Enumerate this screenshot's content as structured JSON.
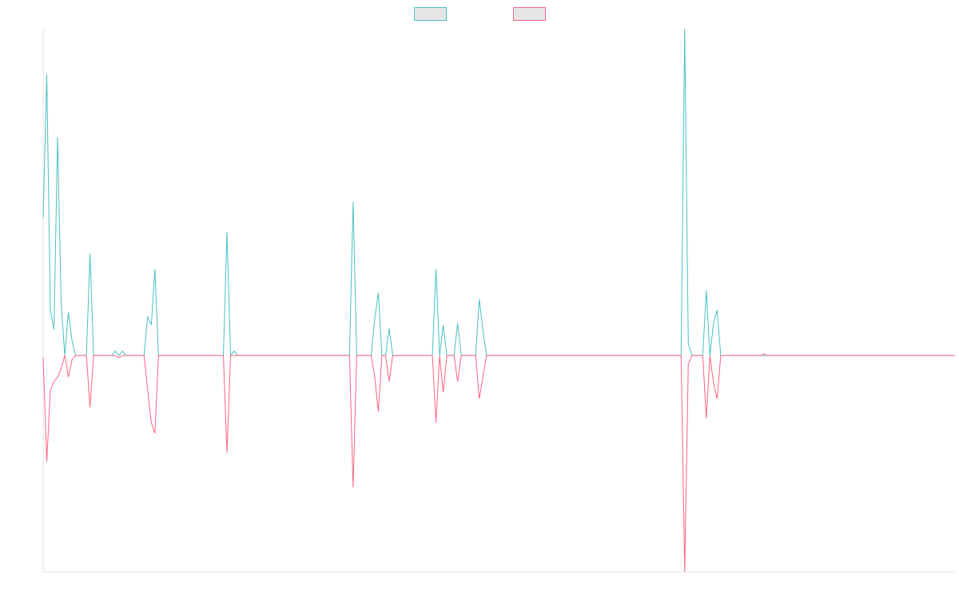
{
  "chart_data": {
    "type": "line",
    "categories": [
      null,
      null,
      null,
      null,
      null,
      null,
      null,
      null,
      null,
      null,
      null,
      null,
      null,
      null,
      null,
      null,
      null,
      null,
      null,
      null,
      null,
      null,
      null,
      null,
      null,
      null,
      null,
      null,
      null,
      null,
      null,
      null,
      null,
      null,
      null,
      null,
      null,
      null,
      null,
      null,
      null,
      null,
      null,
      null,
      null,
      null,
      null,
      null,
      null,
      null,
      null,
      null,
      null,
      null,
      null,
      null,
      null,
      null,
      null,
      null,
      null,
      null,
      null,
      null,
      null,
      null,
      null,
      null,
      null,
      null,
      null,
      null,
      null,
      null,
      null,
      null,
      null,
      null,
      null,
      null,
      null,
      null,
      null,
      null,
      null,
      null,
      null,
      null,
      null,
      null,
      null,
      null,
      null,
      null,
      null,
      null,
      null,
      null,
      null,
      null,
      null,
      null,
      null,
      null,
      null,
      null,
      null,
      null,
      null,
      null,
      null,
      null,
      null,
      null,
      null,
      null,
      null,
      null,
      null,
      null,
      null,
      null,
      null,
      null,
      null,
      null,
      null,
      null,
      null,
      null,
      null,
      null,
      null,
      null,
      null,
      null,
      null,
      null,
      null,
      null,
      null,
      null,
      null,
      null,
      null,
      null,
      null,
      null,
      null,
      null,
      null,
      null,
      null,
      null,
      null,
      null,
      null,
      null,
      null,
      null,
      null,
      null,
      null,
      null,
      null,
      null,
      null,
      null,
      null,
      null,
      null,
      null,
      null,
      null,
      null,
      null,
      null,
      null,
      null,
      null,
      null,
      null,
      null,
      null,
      null,
      null,
      null,
      null,
      null,
      null,
      null,
      null,
      null,
      null,
      null,
      null,
      null,
      null,
      null,
      null,
      null,
      null,
      null,
      null,
      null,
      null,
      null,
      null,
      null,
      null,
      null,
      null,
      null,
      null,
      null,
      null,
      null,
      null,
      null,
      null,
      null,
      null,
      null,
      null,
      null,
      null,
      null,
      null,
      null,
      null,
      null,
      null,
      null,
      null,
      null,
      null,
      null,
      null,
      null,
      null,
      null,
      null,
      null,
      null,
      null,
      null,
      null,
      null,
      null,
      null,
      null,
      null,
      null,
      null
    ],
    "series": [
      {
        "color": "#4bc0c0",
        "values": [
          63.5,
          130,
          21,
          12,
          101,
          24,
          0,
          20,
          7,
          0,
          0,
          0,
          0,
          47,
          0,
          0,
          0,
          0,
          0,
          0,
          2,
          0,
          2,
          0,
          0,
          0,
          0,
          0,
          0,
          18,
          14,
          40,
          0,
          0,
          0,
          0,
          0,
          0,
          0,
          0,
          0,
          0,
          0,
          0,
          0,
          0,
          0,
          0,
          0,
          0,
          0,
          57,
          0,
          2,
          0,
          0,
          0,
          0,
          0,
          0,
          0,
          0,
          0,
          0,
          0,
          0,
          0,
          0,
          0,
          0,
          0,
          0,
          0,
          0,
          0,
          0,
          0,
          0,
          0,
          0,
          0,
          0,
          0,
          0,
          0,
          0,
          71,
          0,
          0,
          0,
          0,
          0,
          17,
          29,
          0,
          0,
          12.5,
          0,
          0,
          0,
          0,
          0,
          0,
          0,
          0,
          0,
          0,
          0,
          0,
          40,
          0,
          14,
          0,
          0,
          0,
          15,
          0,
          0,
          0,
          0,
          0,
          26,
          12,
          0,
          0,
          0,
          0,
          0,
          0,
          0,
          0,
          0,
          0,
          0,
          0,
          0,
          0,
          0,
          0,
          0,
          0,
          0,
          0,
          0,
          0,
          0,
          0,
          0,
          0,
          0,
          0,
          0,
          0,
          0,
          0,
          0,
          0,
          0,
          0,
          0,
          0,
          0,
          0,
          0,
          0,
          0,
          0,
          0,
          0,
          0,
          0,
          0,
          0,
          0,
          0,
          0,
          0,
          0,
          151,
          5.5,
          0,
          0,
          0,
          0,
          30,
          0,
          15,
          21,
          0,
          0,
          0,
          0,
          0,
          0,
          0,
          0,
          0,
          0,
          0,
          0,
          0,
          0,
          0,
          0,
          0,
          0,
          0,
          0,
          0,
          0,
          0,
          0,
          0,
          0,
          0,
          0,
          0,
          0,
          0,
          0,
          0,
          0,
          0,
          0,
          0,
          0,
          0,
          0,
          0,
          0,
          0,
          0,
          0,
          0,
          0,
          0,
          0,
          0,
          0,
          0,
          0,
          0,
          0,
          0,
          0,
          0,
          0,
          0,
          0,
          0,
          0,
          0,
          0,
          0
        ]
      },
      {
        "color": "#ff6384",
        "values": [
          -1,
          -49,
          -16,
          -12,
          -10,
          -6,
          0,
          -10,
          -2,
          0,
          0,
          0,
          0,
          -24,
          0,
          0,
          0,
          0,
          0,
          0,
          0,
          -1,
          0,
          0,
          0,
          0,
          0,
          0,
          0,
          -16,
          -31,
          -36,
          0,
          0,
          0,
          0,
          0,
          0,
          0,
          0,
          0,
          0,
          0,
          0,
          0,
          0,
          0,
          0,
          0,
          0,
          0,
          -45,
          0,
          0,
          0,
          0,
          0,
          0,
          0,
          0,
          0,
          0,
          0,
          0,
          0,
          0,
          0,
          0,
          0,
          0,
          0,
          0,
          0,
          0,
          0,
          0,
          0,
          0,
          0,
          0,
          0,
          0,
          0,
          0,
          0,
          0,
          -61,
          0,
          0,
          0,
          0,
          0,
          -10,
          -26,
          0,
          0,
          -12,
          0,
          0,
          0,
          0,
          0,
          0,
          0,
          0,
          0,
          0,
          0,
          0,
          -31,
          0,
          -17,
          0,
          0,
          0,
          -12,
          0,
          0,
          0,
          0,
          0,
          -20,
          -10,
          0,
          0,
          0,
          0,
          0,
          0,
          0,
          0,
          0,
          0,
          0,
          0,
          0,
          0,
          0,
          0,
          0,
          0,
          0,
          0,
          0,
          0,
          0,
          0,
          0,
          0,
          0,
          0,
          0,
          0,
          0,
          0,
          0,
          0,
          0,
          0,
          0,
          0,
          0,
          0,
          0,
          0,
          0,
          0,
          0,
          0,
          0,
          0,
          0,
          0,
          0,
          0,
          0,
          0,
          0,
          -100,
          -4,
          0,
          0,
          0,
          0,
          -29,
          0,
          -13,
          -20,
          0,
          0,
          0,
          0,
          0,
          0,
          0,
          0,
          0,
          0,
          0,
          0,
          0.7,
          0,
          0,
          0,
          0,
          0,
          0,
          0,
          0,
          0,
          0,
          0,
          0,
          0,
          0,
          0,
          0,
          0,
          0,
          0,
          0,
          0,
          0,
          0,
          0,
          0,
          0,
          0,
          0,
          0,
          0,
          0,
          0,
          0,
          0,
          0,
          0,
          0,
          0,
          0,
          0,
          0,
          0,
          0,
          0,
          0,
          0,
          0,
          0,
          0,
          0,
          0,
          0,
          0
        ]
      }
    ],
    "ylim": [
      -100,
      151
    ],
    "legend": "top"
  }
}
